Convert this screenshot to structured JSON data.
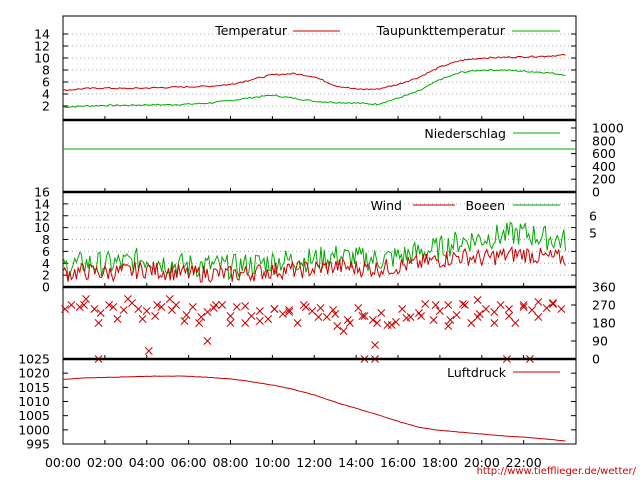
{
  "chart_data": [
    {
      "type": "line",
      "title": "",
      "ylim": [
        1,
        16
      ],
      "y_ticks": [
        2,
        4,
        6,
        8,
        10,
        12,
        14
      ],
      "grid": true,
      "legend_placement": "top-right",
      "x": [
        0,
        1,
        2,
        3,
        4,
        5,
        6,
        7,
        8,
        9,
        10,
        11,
        12,
        13,
        14,
        15,
        16,
        17,
        18,
        19,
        20,
        21,
        22,
        23,
        24
      ],
      "series": [
        {
          "name": "Temperatur",
          "color": "#cc0000",
          "values": [
            4.6,
            4.9,
            5.0,
            4.9,
            5.0,
            5.1,
            5.2,
            5.3,
            5.6,
            6.4,
            7.2,
            7.4,
            6.9,
            5.4,
            4.8,
            4.8,
            5.6,
            6.8,
            8.5,
            9.6,
            10.0,
            10.1,
            10.2,
            10.3,
            10.5
          ]
        },
        {
          "name": "Taupunkttemperatur",
          "color": "#00aa00",
          "values": [
            1.8,
            2.0,
            2.1,
            2.1,
            2.2,
            2.2,
            2.3,
            2.5,
            2.9,
            3.4,
            3.8,
            3.3,
            2.8,
            2.6,
            2.5,
            2.3,
            3.3,
            4.5,
            6.4,
            7.6,
            8.0,
            8.0,
            7.8,
            7.6,
            7.2
          ]
        }
      ]
    },
    {
      "type": "line",
      "title": "",
      "ylim": [
        0,
        1000
      ],
      "y_ticks_right": [
        0,
        200,
        400,
        600,
        800,
        1000
      ],
      "legend_placement": "top-right",
      "x": [
        0,
        24
      ],
      "series": [
        {
          "name": "Niederschlag",
          "color": "#00aa00",
          "values": [
            0,
            0
          ]
        }
      ]
    },
    {
      "type": "line",
      "title": "",
      "ylim": [
        0,
        16
      ],
      "y_ticks": [
        0,
        2,
        4,
        6,
        8,
        10,
        12,
        14,
        16
      ],
      "y_ticks_right": [
        "5",
        "6"
      ],
      "grid": true,
      "legend_placement": "top-right",
      "x": [
        0,
        1,
        2,
        3,
        4,
        5,
        6,
        7,
        8,
        9,
        10,
        11,
        12,
        13,
        14,
        15,
        16,
        17,
        18,
        19,
        20,
        21,
        22,
        23,
        24
      ],
      "series": [
        {
          "name": "Wind",
          "color": "#cc0000",
          "values": [
            2.2,
            2.6,
            2.4,
            2.6,
            3.0,
            2.6,
            2.2,
            2.3,
            2.1,
            2.4,
            2.8,
            2.9,
            3.0,
            3.5,
            3.2,
            3.1,
            3.5,
            4.0,
            4.6,
            5.2,
            4.8,
            5.3,
            5.6,
            5.0,
            4.8
          ]
        },
        {
          "name": "Boeen",
          "color": "#00aa00",
          "values": [
            3.4,
            4.0,
            3.9,
            4.1,
            4.8,
            4.0,
            3.6,
            3.6,
            3.4,
            3.8,
            4.3,
            4.5,
            4.6,
            5.2,
            4.8,
            4.6,
            5.1,
            5.8,
            6.6,
            7.7,
            8.2,
            8.7,
            9.1,
            8.3,
            7.8
          ]
        }
      ]
    },
    {
      "type": "scatter",
      "title": "",
      "ylim": [
        0,
        360
      ],
      "y_ticks_right": [
        0,
        90,
        180,
        270,
        360
      ],
      "x": [
        0.1,
        0.4,
        0.8,
        1.1,
        1.5,
        1.8,
        2.2,
        2.6,
        2.9,
        3.3,
        3.6,
        4.0,
        4.4,
        4.7,
        5.1,
        5.4,
        5.8,
        6.2,
        6.5,
        6.9,
        7.2,
        7.6,
        8.0,
        8.3,
        8.7,
        9.0,
        9.4,
        9.8,
        10.1,
        10.5,
        10.8,
        11.2,
        11.6,
        11.9,
        12.3,
        12.6,
        13.0,
        13.4,
        13.7,
        14.1,
        14.4,
        14.8,
        15.2,
        15.5,
        15.9,
        16.2,
        16.6,
        17.0,
        17.3,
        17.7,
        18.0,
        18.4,
        18.8,
        19.1,
        19.5,
        19.8,
        20.2,
        20.6,
        20.9,
        21.3,
        21.6,
        22.0,
        22.4,
        22.7,
        23.1,
        23.4,
        23.8,
        1.0,
        1.7,
        2.4,
        3.1,
        3.8,
        4.5,
        5.2,
        5.9,
        6.6,
        7.3,
        8.0,
        8.7,
        9.4,
        10.1,
        10.8,
        11.5,
        12.2,
        12.9,
        13.6,
        14.3,
        15.0,
        15.7,
        16.4,
        17.1,
        17.8,
        18.5,
        19.2,
        19.9,
        20.6,
        21.3,
        22.0,
        22.7,
        23.4,
        4.1,
        6.9,
        13.1,
        14.9,
        18.4,
        19.8,
        1.7,
        14.4,
        14.9,
        21.2,
        22.3
      ],
      "values": [
        250,
        270,
        260,
        300,
        250,
        230,
        270,
        200,
        245,
        280,
        250,
        240,
        215,
        260,
        300,
        270,
        190,
        260,
        180,
        235,
        255,
        270,
        215,
        260,
        180,
        215,
        240,
        200,
        250,
        225,
        245,
        180,
        260,
        240,
        255,
        210,
        225,
        140,
        180,
        255,
        215,
        195,
        230,
        170,
        185,
        250,
        210,
        230,
        275,
        195,
        240,
        270,
        220,
        275,
        180,
        210,
        250,
        235,
        270,
        215,
        180,
        270,
        245,
        210,
        255,
        280,
        250,
        270,
        180,
        260,
        300,
        200,
        270,
        245,
        220,
        210,
        270,
        180,
        265,
        190,
        250,
        235,
        270,
        210,
        245,
        195,
        215,
        180,
        170,
        205,
        215,
        270,
        195,
        270,
        225,
        180,
        250,
        260,
        285,
        275,
        40,
        90,
        165,
        70,
        165,
        295,
        0,
        0,
        0,
        0,
        0
      ]
    },
    {
      "type": "line",
      "title": "",
      "ylim": [
        995,
        1025
      ],
      "y_ticks": [
        995,
        1000,
        1005,
        1010,
        1015,
        1020,
        1025
      ],
      "legend_placement": "top-right",
      "x": [
        0,
        1,
        2,
        3,
        4,
        5,
        6,
        7,
        8,
        9,
        10,
        11,
        12,
        13,
        14,
        15,
        16,
        17,
        18,
        19,
        20,
        21,
        22,
        23,
        24
      ],
      "series": [
        {
          "name": "Luftdruck",
          "color": "#cc0000",
          "values": [
            1017.8,
            1018.3,
            1018.5,
            1018.7,
            1018.9,
            1019.0,
            1018.9,
            1018.5,
            1018.0,
            1017.0,
            1015.8,
            1014.3,
            1012.3,
            1009.8,
            1007.6,
            1005.4,
            1003.0,
            1000.9,
            999.8,
            999.2,
            998.5,
            997.9,
            997.4,
            996.8,
            996.1
          ]
        }
      ]
    }
  ],
  "x_axis": {
    "labels": [
      "00:00",
      "02:00",
      "04:00",
      "06:00",
      "08:00",
      "10:00",
      "12:00",
      "14:00",
      "16:00",
      "18:00",
      "20:00",
      "22:00"
    ]
  },
  "footer": {
    "url": "http://www.tiefflieger.de/wetter/"
  }
}
